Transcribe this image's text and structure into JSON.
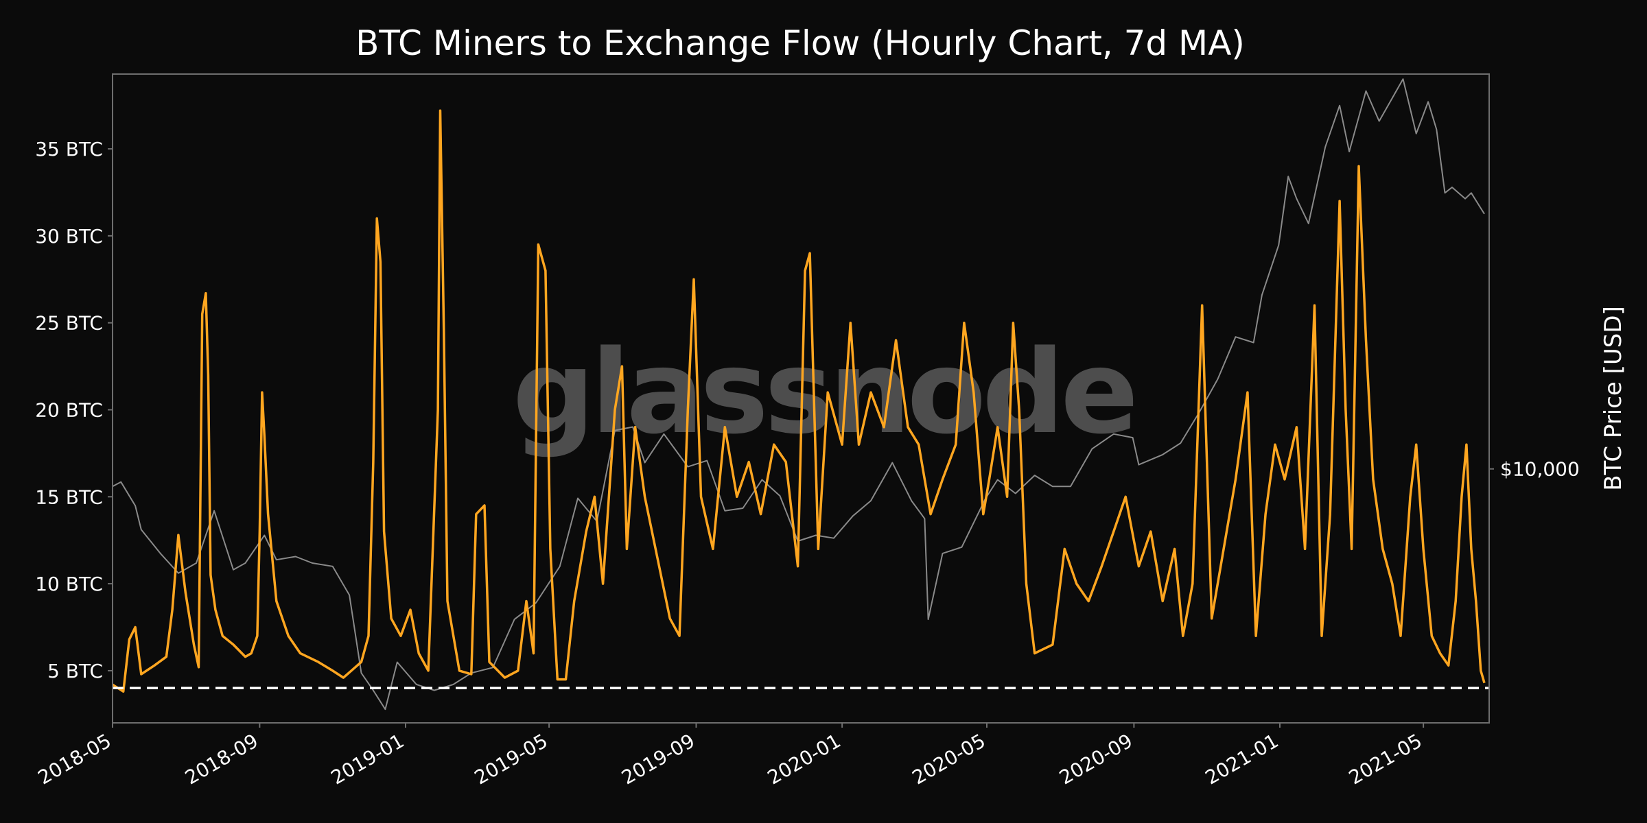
{
  "chart_data": {
    "type": "line",
    "title": "BTC Miners to Exchange Flow (Hourly Chart, 7d MA)",
    "watermark": "glassnode",
    "xlabel": "",
    "ylabel_left": "",
    "ylabel_right": "BTC Price [USD]",
    "x_ticks": [
      "2018-05",
      "2018-09",
      "2019-01",
      "2019-05",
      "2019-09",
      "2020-01",
      "2020-05",
      "2020-09",
      "2021-01",
      "2021-05"
    ],
    "y_ticks": [
      {
        "value": 5,
        "label": "5 BTC"
      },
      {
        "value": 10,
        "label": "10 BTC"
      },
      {
        "value": 15,
        "label": "15 BTC"
      },
      {
        "value": 20,
        "label": "20 BTC"
      },
      {
        "value": 25,
        "label": "25 BTC"
      },
      {
        "value": 30,
        "label": "30 BTC"
      },
      {
        "value": 35,
        "label": "35 BTC"
      }
    ],
    "y2_ticks": [
      {
        "value": 10000,
        "label": "$10,000"
      }
    ],
    "xlim": [
      "2018-05-01",
      "2021-06-25"
    ],
    "ylim": [
      2,
      39.3
    ],
    "y2_scale": "log",
    "y2lim": [
      3000,
      65000
    ],
    "reference_line": {
      "value": 4.0,
      "style": "dashed",
      "color": "#ffffff"
    },
    "grid": false,
    "colors": {
      "background": "#0b0b0b",
      "flow": "#ffa620",
      "price": "#8a8a8a",
      "frame": "#6e6e6e",
      "text": "#ffffff"
    },
    "series": [
      {
        "series_role": "flow",
        "values": [
          [
            "2018-05-01",
            4.2
          ],
          [
            "2018-05-10",
            3.8
          ],
          [
            "2018-05-15",
            6.8
          ],
          [
            "2018-05-20",
            7.5
          ],
          [
            "2018-05-25",
            4.8
          ],
          [
            "2018-06-05",
            5.3
          ],
          [
            "2018-06-15",
            5.8
          ],
          [
            "2018-06-20",
            8.5
          ],
          [
            "2018-06-25",
            12.8
          ],
          [
            "2018-07-01",
            9.5
          ],
          [
            "2018-07-08",
            6.5
          ],
          [
            "2018-07-12",
            5.2
          ],
          [
            "2018-07-15",
            25.5
          ],
          [
            "2018-07-18",
            26.7
          ],
          [
            "2018-07-20",
            22.0
          ],
          [
            "2018-07-22",
            10.5
          ],
          [
            "2018-07-26",
            8.5
          ],
          [
            "2018-08-01",
            7.0
          ],
          [
            "2018-08-10",
            6.5
          ],
          [
            "2018-08-20",
            5.8
          ],
          [
            "2018-08-25",
            6.0
          ],
          [
            "2018-08-30",
            7.0
          ],
          [
            "2018-09-01",
            13.0
          ],
          [
            "2018-09-03",
            21.0
          ],
          [
            "2018-09-05",
            18.5
          ],
          [
            "2018-09-08",
            14.0
          ],
          [
            "2018-09-15",
            9.0
          ],
          [
            "2018-09-25",
            7.0
          ],
          [
            "2018-10-05",
            6.0
          ],
          [
            "2018-10-20",
            5.5
          ],
          [
            "2018-11-01",
            5.0
          ],
          [
            "2018-11-10",
            4.6
          ],
          [
            "2018-11-20",
            5.2
          ],
          [
            "2018-11-25",
            5.5
          ],
          [
            "2018-12-01",
            7.0
          ],
          [
            "2018-12-05",
            17.0
          ],
          [
            "2018-12-08",
            31.0
          ],
          [
            "2018-12-11",
            28.5
          ],
          [
            "2018-12-14",
            13.0
          ],
          [
            "2018-12-20",
            8.0
          ],
          [
            "2018-12-28",
            7.0
          ],
          [
            "2019-01-05",
            8.5
          ],
          [
            "2019-01-12",
            6.0
          ],
          [
            "2019-01-20",
            5.0
          ],
          [
            "2019-01-28",
            20.0
          ],
          [
            "2019-01-30",
            37.2
          ],
          [
            "2019-02-02",
            24.5
          ],
          [
            "2019-02-05",
            9.0
          ],
          [
            "2019-02-15",
            5.0
          ],
          [
            "2019-02-25",
            4.8
          ],
          [
            "2019-03-01",
            14.0
          ],
          [
            "2019-03-08",
            14.5
          ],
          [
            "2019-03-12",
            5.5
          ],
          [
            "2019-03-25",
            4.6
          ],
          [
            "2019-04-05",
            5.0
          ],
          [
            "2019-04-12",
            9.0
          ],
          [
            "2019-04-18",
            6.0
          ],
          [
            "2019-04-22",
            29.5
          ],
          [
            "2019-04-28",
            28.0
          ],
          [
            "2019-05-02",
            12.0
          ],
          [
            "2019-05-08",
            4.5
          ],
          [
            "2019-05-15",
            4.5
          ],
          [
            "2019-05-22",
            9.0
          ],
          [
            "2019-06-01",
            13.0
          ],
          [
            "2019-06-08",
            15.0
          ],
          [
            "2019-06-15",
            10.0
          ],
          [
            "2019-06-25",
            20.0
          ],
          [
            "2019-07-01",
            22.5
          ],
          [
            "2019-07-05",
            12.0
          ],
          [
            "2019-07-12",
            19.0
          ],
          [
            "2019-07-20",
            15.0
          ],
          [
            "2019-08-01",
            11.0
          ],
          [
            "2019-08-10",
            8.0
          ],
          [
            "2019-08-18",
            7.0
          ],
          [
            "2019-08-25",
            20.0
          ],
          [
            "2019-08-30",
            27.5
          ],
          [
            "2019-09-05",
            15.0
          ],
          [
            "2019-09-15",
            12.0
          ],
          [
            "2019-09-25",
            19.0
          ],
          [
            "2019-10-05",
            15.0
          ],
          [
            "2019-10-15",
            17.0
          ],
          [
            "2019-10-25",
            14.0
          ],
          [
            "2019-11-05",
            18.0
          ],
          [
            "2019-11-15",
            17.0
          ],
          [
            "2019-11-25",
            11.0
          ],
          [
            "2019-12-01",
            28.0
          ],
          [
            "2019-12-05",
            29.0
          ],
          [
            "2019-12-12",
            12.0
          ],
          [
            "2019-12-20",
            21.0
          ],
          [
            "2020-01-01",
            18.0
          ],
          [
            "2020-01-08",
            25.0
          ],
          [
            "2020-01-15",
            18.0
          ],
          [
            "2020-01-25",
            21.0
          ],
          [
            "2020-02-05",
            19.0
          ],
          [
            "2020-02-15",
            24.0
          ],
          [
            "2020-02-25",
            19.0
          ],
          [
            "2020-03-05",
            18.0
          ],
          [
            "2020-03-15",
            14.0
          ],
          [
            "2020-03-25",
            16.0
          ],
          [
            "2020-04-05",
            18.0
          ],
          [
            "2020-04-12",
            25.0
          ],
          [
            "2020-04-20",
            21.0
          ],
          [
            "2020-04-28",
            14.0
          ],
          [
            "2020-05-03",
            16.0
          ],
          [
            "2020-05-10",
            19.0
          ],
          [
            "2020-05-18",
            15.0
          ],
          [
            "2020-05-23",
            25.0
          ],
          [
            "2020-05-28",
            20.0
          ],
          [
            "2020-06-03",
            10.0
          ],
          [
            "2020-06-10",
            6.0
          ],
          [
            "2020-06-25",
            6.5
          ],
          [
            "2020-07-05",
            12.0
          ],
          [
            "2020-07-15",
            10.0
          ],
          [
            "2020-07-25",
            9.0
          ],
          [
            "2020-08-05",
            11.0
          ],
          [
            "2020-08-15",
            13.0
          ],
          [
            "2020-08-25",
            15.0
          ],
          [
            "2020-09-05",
            11.0
          ],
          [
            "2020-09-15",
            13.0
          ],
          [
            "2020-09-25",
            9.0
          ],
          [
            "2020-10-05",
            12.0
          ],
          [
            "2020-10-12",
            7.0
          ],
          [
            "2020-10-20",
            10.0
          ],
          [
            "2020-10-28",
            26.0
          ],
          [
            "2020-11-05",
            8.0
          ],
          [
            "2020-11-15",
            12.0
          ],
          [
            "2020-11-25",
            16.0
          ],
          [
            "2020-12-05",
            21.0
          ],
          [
            "2020-12-12",
            7.0
          ],
          [
            "2020-12-20",
            14.0
          ],
          [
            "2020-12-28",
            18.0
          ],
          [
            "2021-01-05",
            16.0
          ],
          [
            "2021-01-15",
            19.0
          ],
          [
            "2021-01-22",
            12.0
          ],
          [
            "2021-01-30",
            26.0
          ],
          [
            "2021-02-05",
            7.0
          ],
          [
            "2021-02-12",
            14.0
          ],
          [
            "2021-02-20",
            32.0
          ],
          [
            "2021-02-25",
            20.0
          ],
          [
            "2021-03-02",
            12.0
          ],
          [
            "2021-03-08",
            34.0
          ],
          [
            "2021-03-14",
            24.0
          ],
          [
            "2021-03-20",
            16.0
          ],
          [
            "2021-03-28",
            12.0
          ],
          [
            "2021-04-05",
            10.0
          ],
          [
            "2021-04-12",
            7.0
          ],
          [
            "2021-04-20",
            15.0
          ],
          [
            "2021-04-25",
            18.0
          ],
          [
            "2021-05-01",
            12.0
          ],
          [
            "2021-05-08",
            7.0
          ],
          [
            "2021-05-15",
            6.0
          ],
          [
            "2021-05-22",
            5.3
          ],
          [
            "2021-05-28",
            9.0
          ],
          [
            "2021-06-02",
            15.0
          ],
          [
            "2021-06-06",
            18.0
          ],
          [
            "2021-06-10",
            12.0
          ],
          [
            "2021-06-14",
            9.0
          ],
          [
            "2021-06-18",
            5.0
          ],
          [
            "2021-06-21",
            4.3
          ]
        ]
      },
      {
        "series_role": "price",
        "values": [
          [
            "2018-05-01",
            9200
          ],
          [
            "2018-05-08",
            9400
          ],
          [
            "2018-05-20",
            8400
          ],
          [
            "2018-05-25",
            7500
          ],
          [
            "2018-06-10",
            6700
          ],
          [
            "2018-06-25",
            6100
          ],
          [
            "2018-07-10",
            6400
          ],
          [
            "2018-07-25",
            8200
          ],
          [
            "2018-08-10",
            6200
          ],
          [
            "2018-08-20",
            6400
          ],
          [
            "2018-09-05",
            7300
          ],
          [
            "2018-09-15",
            6500
          ],
          [
            "2018-10-01",
            6600
          ],
          [
            "2018-10-15",
            6400
          ],
          [
            "2018-11-01",
            6300
          ],
          [
            "2018-11-15",
            5500
          ],
          [
            "2018-11-25",
            3800
          ],
          [
            "2018-12-05",
            3500
          ],
          [
            "2018-12-15",
            3200
          ],
          [
            "2018-12-25",
            4000
          ],
          [
            "2019-01-10",
            3600
          ],
          [
            "2019-01-25",
            3500
          ],
          [
            "2019-02-10",
            3600
          ],
          [
            "2019-02-25",
            3800
          ],
          [
            "2019-03-15",
            3900
          ],
          [
            "2019-04-02",
            4900
          ],
          [
            "2019-04-20",
            5300
          ],
          [
            "2019-05-10",
            6300
          ],
          [
            "2019-05-25",
            8700
          ],
          [
            "2019-06-10",
            7800
          ],
          [
            "2019-06-25",
            12000
          ],
          [
            "2019-07-10",
            12200
          ],
          [
            "2019-07-20",
            10300
          ],
          [
            "2019-08-05",
            11800
          ],
          [
            "2019-08-25",
            10100
          ],
          [
            "2019-09-10",
            10400
          ],
          [
            "2019-09-25",
            8200
          ],
          [
            "2019-10-10",
            8300
          ],
          [
            "2019-10-26",
            9500
          ],
          [
            "2019-11-10",
            8800
          ],
          [
            "2019-11-25",
            7100
          ],
          [
            "2019-12-10",
            7300
          ],
          [
            "2019-12-25",
            7200
          ],
          [
            "2020-01-10",
            8000
          ],
          [
            "2020-01-25",
            8600
          ],
          [
            "2020-02-12",
            10300
          ],
          [
            "2020-02-28",
            8600
          ],
          [
            "2020-03-10",
            7900
          ],
          [
            "2020-03-13",
            4900
          ],
          [
            "2020-03-25",
            6700
          ],
          [
            "2020-04-10",
            6900
          ],
          [
            "2020-04-30",
            8700
          ],
          [
            "2020-05-10",
            9500
          ],
          [
            "2020-05-25",
            8900
          ],
          [
            "2020-06-10",
            9700
          ],
          [
            "2020-06-25",
            9200
          ],
          [
            "2020-07-10",
            9200
          ],
          [
            "2020-07-28",
            11000
          ],
          [
            "2020-08-15",
            11800
          ],
          [
            "2020-08-31",
            11600
          ],
          [
            "2020-09-05",
            10200
          ],
          [
            "2020-09-25",
            10700
          ],
          [
            "2020-10-10",
            11300
          ],
          [
            "2020-10-25",
            13000
          ],
          [
            "2020-11-10",
            15300
          ],
          [
            "2020-11-25",
            18700
          ],
          [
            "2020-12-10",
            18200
          ],
          [
            "2020-12-17",
            22800
          ],
          [
            "2020-12-31",
            28900
          ],
          [
            "2021-01-08",
            40000
          ],
          [
            "2021-01-15",
            36000
          ],
          [
            "2021-01-25",
            32000
          ],
          [
            "2021-02-08",
            46000
          ],
          [
            "2021-02-20",
            56000
          ],
          [
            "2021-02-28",
            45000
          ],
          [
            "2021-03-14",
            60000
          ],
          [
            "2021-03-25",
            52000
          ],
          [
            "2021-04-05",
            58000
          ],
          [
            "2021-04-14",
            63500
          ],
          [
            "2021-04-25",
            49000
          ],
          [
            "2021-05-05",
            57000
          ],
          [
            "2021-05-12",
            50000
          ],
          [
            "2021-05-19",
            37000
          ],
          [
            "2021-05-25",
            38000
          ],
          [
            "2021-06-05",
            36000
          ],
          [
            "2021-06-10",
            37000
          ],
          [
            "2021-06-21",
            33500
          ]
        ]
      }
    ]
  }
}
